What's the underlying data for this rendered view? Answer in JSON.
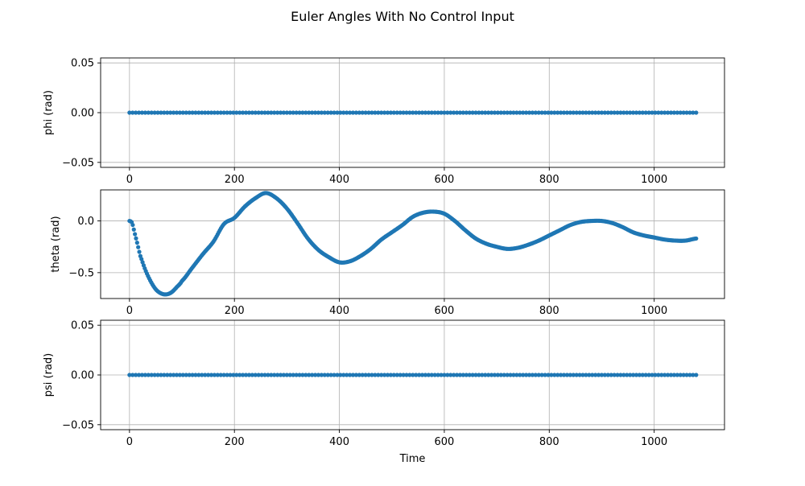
{
  "figure": {
    "title": "Euler Angles With No Control Input"
  },
  "chart_data": [
    {
      "type": "scatter",
      "ylabel": "phi (rad)",
      "xlabel": "",
      "xlim": [
        -55,
        1134
      ],
      "ylim": [
        -0.055,
        0.055
      ],
      "xticks": [
        0,
        200,
        400,
        600,
        800,
        1000
      ],
      "xtick_labels": [
        "0",
        "200",
        "400",
        "600",
        "800",
        "1000"
      ],
      "yticks": [
        -0.05,
        0.0,
        0.05
      ],
      "ytick_labels": [
        "−0.05",
        "0.00",
        "0.05"
      ],
      "grid": true,
      "series": [
        {
          "x": [
            0,
            1080
          ],
          "y": [
            0,
            0
          ],
          "constant": 0
        }
      ]
    },
    {
      "type": "scatter",
      "ylabel": "theta (rad)",
      "xlabel": "",
      "xlim": [
        -55,
        1134
      ],
      "ylim": [
        -0.75,
        0.3
      ],
      "xticks": [
        0,
        200,
        400,
        600,
        800,
        1000
      ],
      "xtick_labels": [
        "0",
        "200",
        "400",
        "600",
        "800",
        "1000"
      ],
      "yticks": [
        -0.5,
        0.0
      ],
      "ytick_labels": [
        "−0.5",
        "0.0"
      ],
      "grid": true,
      "series": [
        {
          "x": [
            0,
            5,
            10,
            15,
            20,
            30,
            40,
            50,
            60,
            70,
            80,
            90,
            100,
            120,
            140,
            160,
            180,
            200,
            220,
            240,
            260,
            280,
            300,
            320,
            340,
            360,
            380,
            400,
            420,
            440,
            460,
            480,
            500,
            520,
            540,
            560,
            580,
            600,
            620,
            640,
            660,
            680,
            700,
            720,
            740,
            760,
            780,
            800,
            820,
            840,
            860,
            880,
            900,
            920,
            940,
            960,
            980,
            1000,
            1020,
            1040,
            1060,
            1080
          ],
          "y": [
            0.0,
            -0.02,
            -0.12,
            -0.22,
            -0.33,
            -0.47,
            -0.58,
            -0.66,
            -0.7,
            -0.71,
            -0.69,
            -0.64,
            -0.58,
            -0.45,
            -0.32,
            -0.2,
            -0.03,
            0.03,
            0.14,
            0.22,
            0.27,
            0.22,
            0.12,
            -0.02,
            -0.17,
            -0.28,
            -0.35,
            -0.4,
            -0.39,
            -0.34,
            -0.27,
            -0.18,
            -0.11,
            -0.04,
            0.04,
            0.08,
            0.09,
            0.07,
            0.0,
            -0.09,
            -0.17,
            -0.22,
            -0.25,
            -0.27,
            -0.26,
            -0.23,
            -0.19,
            -0.14,
            -0.09,
            -0.04,
            -0.01,
            0.0,
            0.0,
            -0.02,
            -0.06,
            -0.11,
            -0.14,
            -0.16,
            -0.18,
            -0.19,
            -0.19,
            -0.17
          ]
        }
      ]
    },
    {
      "type": "scatter",
      "ylabel": "psi (rad)",
      "xlabel": "Time",
      "xlim": [
        -55,
        1134
      ],
      "ylim": [
        -0.055,
        0.055
      ],
      "xticks": [
        0,
        200,
        400,
        600,
        800,
        1000
      ],
      "xtick_labels": [
        "0",
        "200",
        "400",
        "600",
        "800",
        "1000"
      ],
      "yticks": [
        -0.05,
        0.0,
        0.05
      ],
      "ytick_labels": [
        "−0.05",
        "0.00",
        "0.05"
      ],
      "grid": true,
      "series": [
        {
          "x": [
            0,
            1080
          ],
          "y": [
            0,
            0
          ],
          "constant": 0
        }
      ]
    }
  ],
  "colors": {
    "series": "#1f77b4",
    "grid": "#b0b0b0",
    "axis": "#000000"
  }
}
